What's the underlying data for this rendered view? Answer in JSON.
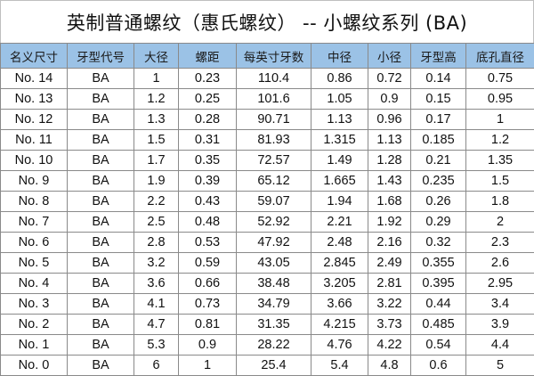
{
  "title": "英制普通螺纹（惠氏螺纹） -- 小螺纹系列 (BA)",
  "columns": [
    "名义尺寸",
    "牙型代号",
    "大径",
    "螺距",
    "每英寸牙数",
    "中径",
    "小径",
    "牙型高",
    "底孔直径"
  ],
  "rows": [
    [
      "No. 14",
      "BA",
      "1",
      "0.23",
      "110.4",
      "0.86",
      "0.72",
      "0.14",
      "0.75"
    ],
    [
      "No. 13",
      "BA",
      "1.2",
      "0.25",
      "101.6",
      "1.05",
      "0.9",
      "0.15",
      "0.95"
    ],
    [
      "No. 12",
      "BA",
      "1.3",
      "0.28",
      "90.71",
      "1.13",
      "0.96",
      "0.17",
      "1"
    ],
    [
      "No. 11",
      "BA",
      "1.5",
      "0.31",
      "81.93",
      "1.315",
      "1.13",
      "0.185",
      "1.2"
    ],
    [
      "No. 10",
      "BA",
      "1.7",
      "0.35",
      "72.57",
      "1.49",
      "1.28",
      "0.21",
      "1.35"
    ],
    [
      "No. 9",
      "BA",
      "1.9",
      "0.39",
      "65.12",
      "1.665",
      "1.43",
      "0.235",
      "1.5"
    ],
    [
      "No. 8",
      "BA",
      "2.2",
      "0.43",
      "59.07",
      "1.94",
      "1.68",
      "0.26",
      "1.8"
    ],
    [
      "No. 7",
      "BA",
      "2.5",
      "0.48",
      "52.92",
      "2.21",
      "1.92",
      "0.29",
      "2"
    ],
    [
      "No. 6",
      "BA",
      "2.8",
      "0.53",
      "47.92",
      "2.48",
      "2.16",
      "0.32",
      "2.3"
    ],
    [
      "No. 5",
      "BA",
      "3.2",
      "0.59",
      "43.05",
      "2.845",
      "2.49",
      "0.355",
      "2.6"
    ],
    [
      "No. 4",
      "BA",
      "3.6",
      "0.66",
      "38.48",
      "3.205",
      "2.81",
      "0.395",
      "2.95"
    ],
    [
      "No. 3",
      "BA",
      "4.1",
      "0.73",
      "34.79",
      "3.66",
      "3.22",
      "0.44",
      "3.4"
    ],
    [
      "No. 2",
      "BA",
      "4.7",
      "0.81",
      "31.35",
      "4.215",
      "3.73",
      "0.485",
      "3.9"
    ],
    [
      "No. 1",
      "BA",
      "5.3",
      "0.9",
      "28.22",
      "4.76",
      "4.22",
      "0.54",
      "4.4"
    ],
    [
      "No. 0",
      "BA",
      "6",
      "1",
      "25.4",
      "5.4",
      "4.8",
      "0.6",
      "5"
    ]
  ],
  "colors": {
    "header_bg": "#9bc2e6",
    "grid": "#8a8a8a"
  }
}
